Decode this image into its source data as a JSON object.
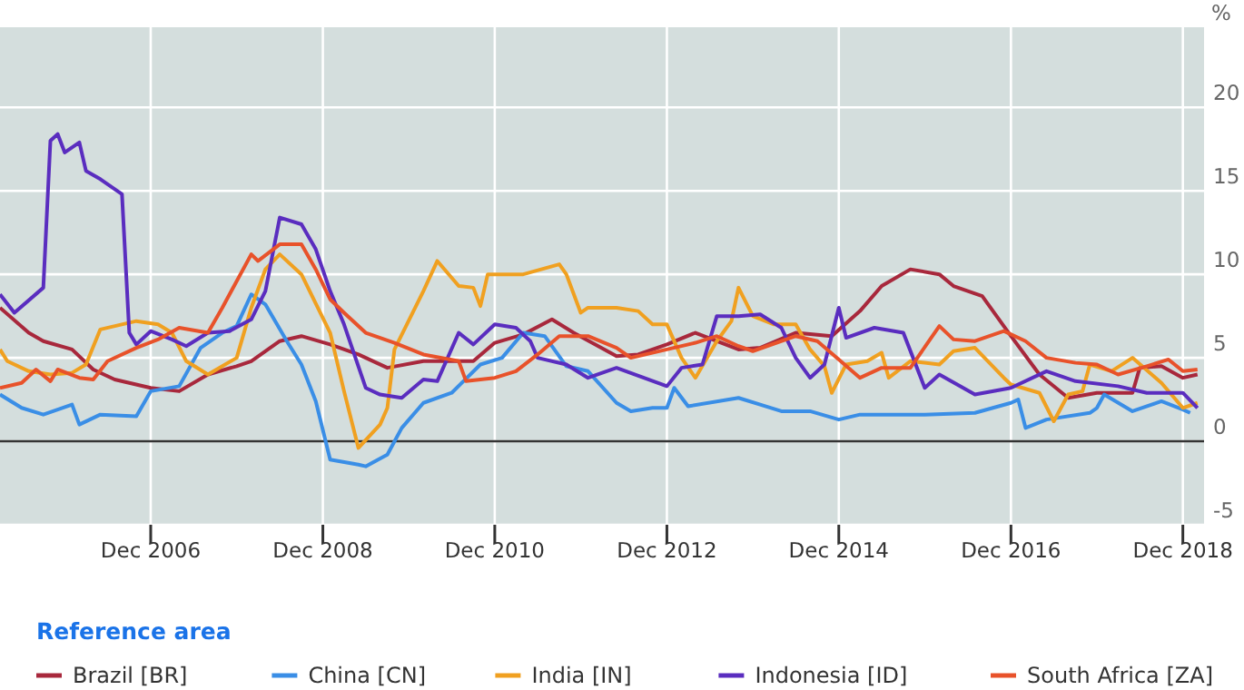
{
  "chart_data": {
    "type": "line",
    "ylabel": "%",
    "legend_title": "Reference area",
    "legend": "bottom",
    "grid": true,
    "line_style": "solid",
    "marker": "none",
    "xlim": [
      "2005-03",
      "2019-03"
    ],
    "ylim": [
      -5,
      24.8
    ],
    "xticks": [
      {
        "value": "2006-12",
        "label": "Dec 2006"
      },
      {
        "value": "2008-12",
        "label": "Dec 2008"
      },
      {
        "value": "2010-12",
        "label": "Dec 2010"
      },
      {
        "value": "2012-12",
        "label": "Dec 2012"
      },
      {
        "value": "2014-12",
        "label": "Dec 2014"
      },
      {
        "value": "2016-12",
        "label": "Dec 2016"
      },
      {
        "value": "2018-12",
        "label": "Dec 2018"
      }
    ],
    "yticks": [
      -5,
      0,
      5,
      10,
      15,
      20
    ],
    "ref_lines": [
      {
        "axis": "y",
        "value": 0,
        "color": "#333333"
      }
    ],
    "series": [
      {
        "name": "Brazil [BR]",
        "color": "#a8283c",
        "x": [
          "2005-03",
          "2005-07",
          "2005-09",
          "2006-01",
          "2006-04",
          "2006-07",
          "2006-12",
          "2007-04",
          "2007-08",
          "2007-12",
          "2008-02",
          "2008-06",
          "2008-09",
          "2009-01",
          "2009-05",
          "2009-09",
          "2010-02",
          "2010-06",
          "2010-09",
          "2010-12",
          "2011-04",
          "2011-08",
          "2011-11",
          "2012-02",
          "2012-05",
          "2012-08",
          "2012-12",
          "2013-04",
          "2013-10",
          "2014-01",
          "2014-06",
          "2014-11",
          "2015-03",
          "2015-06",
          "2015-10",
          "2016-02",
          "2016-04",
          "2016-08",
          "2016-12",
          "2017-04",
          "2017-08",
          "2017-12",
          "2018-05",
          "2018-06",
          "2018-09",
          "2018-12",
          "2019-02"
        ],
        "values": [
          8.0,
          6.5,
          6.0,
          5.5,
          4.3,
          3.7,
          3.2,
          3.0,
          4.0,
          4.5,
          4.8,
          6.0,
          6.3,
          5.8,
          5.2,
          4.4,
          4.8,
          4.8,
          4.8,
          5.9,
          6.4,
          7.3,
          6.5,
          5.8,
          5.1,
          5.2,
          5.8,
          6.5,
          5.5,
          5.6,
          6.5,
          6.3,
          7.8,
          9.3,
          10.3,
          10.0,
          9.3,
          8.7,
          6.3,
          4.0,
          2.6,
          2.9,
          2.9,
          4.4,
          4.5,
          3.8,
          4.0
        ]
      },
      {
        "name": "China [CN]",
        "color": "#3a8ee6",
        "x": [
          "2005-03",
          "2005-06",
          "2005-09",
          "2006-01",
          "2006-02",
          "2006-05",
          "2006-10",
          "2006-12",
          "2007-04",
          "2007-07",
          "2007-10",
          "2007-12",
          "2008-02",
          "2008-04",
          "2008-07",
          "2008-09",
          "2008-11",
          "2009-01",
          "2009-05",
          "2009-06",
          "2009-09",
          "2009-11",
          "2010-02",
          "2010-06",
          "2010-10",
          "2011-01",
          "2011-04",
          "2011-07",
          "2011-10",
          "2012-01",
          "2012-05",
          "2012-07",
          "2012-10",
          "2012-12",
          "2013-01",
          "2013-03",
          "2013-10",
          "2014-01",
          "2014-04",
          "2014-08",
          "2014-12",
          "2015-03",
          "2015-08",
          "2015-12",
          "2016-07",
          "2016-12",
          "2017-01",
          "2017-02",
          "2017-05",
          "2017-11",
          "2017-12",
          "2018-01",
          "2018-05",
          "2018-09",
          "2018-12",
          "2019-01"
        ],
        "values": [
          2.8,
          2.0,
          1.6,
          2.2,
          1.0,
          1.6,
          1.5,
          3.0,
          3.3,
          5.6,
          6.5,
          6.9,
          8.8,
          8.2,
          6.0,
          4.6,
          2.4,
          -1.1,
          -1.4,
          -1.5,
          -0.8,
          0.8,
          2.3,
          2.9,
          4.6,
          5.0,
          6.5,
          6.3,
          4.5,
          4.2,
          2.3,
          1.8,
          2.0,
          2.0,
          3.2,
          2.1,
          2.6,
          2.2,
          1.8,
          1.8,
          1.3,
          1.6,
          1.6,
          1.6,
          1.7,
          2.3,
          2.5,
          0.8,
          1.3,
          1.7,
          2.0,
          2.8,
          1.8,
          2.4,
          1.9,
          1.7
        ]
      },
      {
        "name": "India [IN]",
        "color": "#f0a020",
        "x": [
          "2005-03",
          "2005-04",
          "2005-07",
          "2005-10",
          "2006-01",
          "2006-03",
          "2006-05",
          "2006-10",
          "2007-01",
          "2007-03",
          "2007-05",
          "2007-08",
          "2007-12",
          "2008-02",
          "2008-04",
          "2008-06",
          "2008-09",
          "2009-01",
          "2009-03",
          "2009-05",
          "2009-08",
          "2009-09",
          "2009-10",
          "2010-02",
          "2010-04",
          "2010-07",
          "2010-09",
          "2010-10",
          "2010-11",
          "2011-04",
          "2011-09",
          "2011-10",
          "2011-12",
          "2012-01",
          "2012-05",
          "2012-08",
          "2012-10",
          "2012-12",
          "2013-02",
          "2013-04",
          "2013-07",
          "2013-09",
          "2013-10",
          "2013-12",
          "2014-03",
          "2014-06",
          "2014-08",
          "2014-10",
          "2014-11",
          "2015-01",
          "2015-04",
          "2015-06",
          "2015-07",
          "2015-10",
          "2016-02",
          "2016-04",
          "2016-07",
          "2016-11",
          "2016-12",
          "2017-04",
          "2017-06",
          "2017-08",
          "2017-10",
          "2017-11",
          "2018-02",
          "2018-05",
          "2018-09",
          "2018-12",
          "2019-02"
        ],
        "values": [
          5.5,
          4.8,
          4.2,
          4.0,
          4.1,
          4.6,
          6.7,
          7.2,
          7.0,
          6.5,
          4.8,
          4.0,
          5.0,
          8.0,
          10.3,
          11.2,
          10.0,
          6.5,
          3.0,
          -0.4,
          1.0,
          2.0,
          5.5,
          9.0,
          10.8,
          9.3,
          9.2,
          8.1,
          10.0,
          10.0,
          10.6,
          10.0,
          7.7,
          8.0,
          8.0,
          7.8,
          7.0,
          7.0,
          5.0,
          3.8,
          6.0,
          7.2,
          9.2,
          7.5,
          7.0,
          7.0,
          5.5,
          4.5,
          2.9,
          4.6,
          4.8,
          5.3,
          3.8,
          4.8,
          4.6,
          5.4,
          5.6,
          3.8,
          3.4,
          2.9,
          1.2,
          2.8,
          3.0,
          4.6,
          4.2,
          5.0,
          3.5,
          2.0,
          2.3
        ]
      },
      {
        "name": "Indonesia [ID]",
        "color": "#5a2dbf",
        "x": [
          "2005-03",
          "2005-05",
          "2005-09",
          "2005-10",
          "2005-11",
          "2005-12",
          "2006-02",
          "2006-03",
          "2006-05",
          "2006-08",
          "2006-09",
          "2006-10",
          "2006-12",
          "2007-03",
          "2007-05",
          "2007-08",
          "2007-11",
          "2008-02",
          "2008-04",
          "2008-06",
          "2008-09",
          "2008-11",
          "2009-01",
          "2009-03",
          "2009-06",
          "2009-08",
          "2009-11",
          "2010-02",
          "2010-04",
          "2010-07",
          "2010-09",
          "2010-12",
          "2011-03",
          "2011-05",
          "2011-06",
          "2011-10",
          "2012-01",
          "2012-05",
          "2012-12",
          "2013-02",
          "2013-05",
          "2013-07",
          "2013-10",
          "2014-01",
          "2014-04",
          "2014-06",
          "2014-08",
          "2014-10",
          "2014-12",
          "2015-01",
          "2015-05",
          "2015-09",
          "2015-12",
          "2016-02",
          "2016-07",
          "2016-12",
          "2017-05",
          "2017-09",
          "2018-03",
          "2018-07",
          "2018-12",
          "2019-02"
        ],
        "values": [
          8.8,
          7.7,
          9.2,
          18.0,
          18.4,
          17.3,
          17.9,
          16.2,
          15.7,
          14.8,
          6.5,
          5.8,
          6.6,
          6.1,
          5.7,
          6.5,
          6.6,
          7.3,
          9.0,
          13.4,
          13.0,
          11.5,
          9.0,
          7.0,
          3.2,
          2.8,
          2.6,
          3.7,
          3.6,
          6.5,
          5.8,
          7.0,
          6.8,
          6.0,
          5.0,
          4.6,
          3.8,
          4.4,
          3.3,
          4.4,
          4.6,
          7.5,
          7.5,
          7.6,
          6.8,
          5.0,
          3.8,
          4.6,
          8.0,
          6.2,
          6.8,
          6.5,
          3.2,
          4.0,
          2.8,
          3.2,
          4.2,
          3.6,
          3.3,
          2.9,
          2.9,
          2.0
        ]
      },
      {
        "name": "South Africa [ZA]",
        "color": "#e8522a",
        "x": [
          "2005-03",
          "2005-06",
          "2005-08",
          "2005-10",
          "2005-11",
          "2006-02",
          "2006-04",
          "2006-06",
          "2006-10",
          "2007-01",
          "2007-04",
          "2007-08",
          "2007-10",
          "2008-02",
          "2008-03",
          "2008-06",
          "2008-09",
          "2008-11",
          "2009-01",
          "2009-03",
          "2009-06",
          "2009-10",
          "2010-02",
          "2010-07",
          "2010-08",
          "2010-12",
          "2011-03",
          "2011-06",
          "2011-09",
          "2012-01",
          "2012-05",
          "2012-07",
          "2012-12",
          "2013-04",
          "2013-07",
          "2013-10",
          "2013-12",
          "2014-06",
          "2014-09",
          "2014-12",
          "2015-03",
          "2015-06",
          "2015-10",
          "2016-02",
          "2016-04",
          "2016-07",
          "2016-11",
          "2017-02",
          "2017-05",
          "2017-09",
          "2017-12",
          "2018-03",
          "2018-07",
          "2018-10",
          "2018-12",
          "2019-02"
        ],
        "values": [
          3.2,
          3.5,
          4.3,
          3.6,
          4.3,
          3.8,
          3.7,
          4.8,
          5.6,
          6.1,
          6.8,
          6.5,
          8.0,
          11.2,
          10.8,
          11.8,
          11.8,
          10.3,
          8.5,
          7.7,
          6.5,
          5.9,
          5.2,
          4.8,
          3.6,
          3.8,
          4.2,
          5.2,
          6.3,
          6.3,
          5.6,
          5.0,
          5.5,
          5.9,
          6.3,
          5.7,
          5.4,
          6.3,
          6.0,
          4.9,
          3.8,
          4.4,
          4.4,
          6.9,
          6.1,
          6.0,
          6.6,
          6.0,
          5.0,
          4.7,
          4.6,
          4.0,
          4.5,
          4.9,
          4.2,
          4.3
        ]
      }
    ]
  }
}
